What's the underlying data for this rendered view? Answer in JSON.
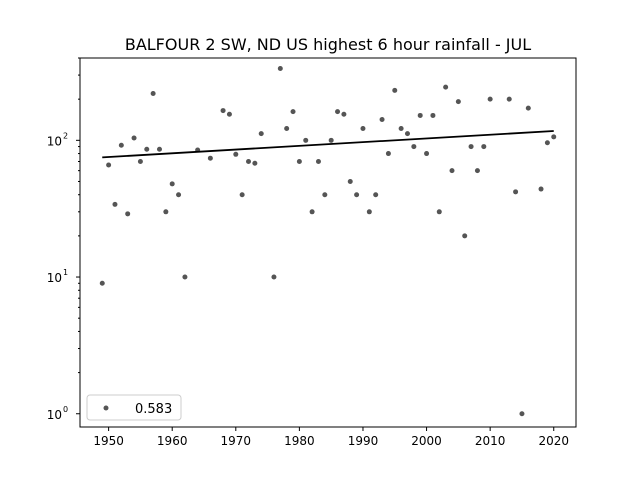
{
  "chart_data": {
    "type": "scatter",
    "title": "BALFOUR 2 SW, ND US highest 6 hour rainfall - JUL",
    "xlabel": "",
    "ylabel": "",
    "yscale": "log",
    "xlim": [
      1945.5,
      2023.5
    ],
    "ylim": [
      0.8,
      400
    ],
    "xticks": [
      1950,
      1960,
      1970,
      1980,
      1990,
      2000,
      2010,
      2020
    ],
    "xtick_labels": [
      "1950",
      "1960",
      "1970",
      "1980",
      "1990",
      "2000",
      "2010",
      "2020"
    ],
    "yticks": [
      1,
      10,
      100
    ],
    "ytick_labels": [
      "10",
      "10",
      "10"
    ],
    "ytick_exponents": [
      "0",
      "1",
      "2"
    ],
    "grid": false,
    "legend": {
      "placement": "lower-left",
      "entries": [
        "0.583"
      ]
    },
    "point_color": "#555555",
    "trend_color": "#000000",
    "x": [
      1949,
      1950,
      1951,
      1952,
      1953,
      1954,
      1955,
      1956,
      1957,
      1958,
      1959,
      1960,
      1961,
      1962,
      1964,
      1966,
      1968,
      1969,
      1970,
      1971,
      1972,
      1973,
      1974,
      1976,
      1977,
      1978,
      1979,
      1980,
      1981,
      1982,
      1983,
      1984,
      1985,
      1986,
      1987,
      1988,
      1989,
      1990,
      1991,
      1992,
      1993,
      1994,
      1995,
      1996,
      1997,
      1998,
      1999,
      2000,
      2001,
      2002,
      2003,
      2004,
      2005,
      2006,
      2007,
      2008,
      2009,
      2010,
      2013,
      2014,
      2015,
      2016,
      2018,
      2019,
      2020
    ],
    "y": [
      9,
      66,
      34,
      92,
      29,
      104,
      70,
      86,
      220,
      86,
      30,
      48,
      40,
      10,
      85,
      74,
      165,
      155,
      79,
      40,
      70,
      68,
      112,
      10,
      335,
      122,
      162,
      70,
      100,
      30,
      70,
      40,
      100,
      162,
      155,
      50,
      40,
      122,
      30,
      40,
      142,
      80,
      232,
      122,
      112,
      90,
      152,
      80,
      152,
      30,
      245,
      60,
      192,
      20,
      90,
      60,
      90,
      200,
      200,
      42,
      1,
      172,
      44,
      96,
      106
    ],
    "trend": {
      "x": [
        1949,
        2020
      ],
      "y": [
        75,
        117
      ]
    }
  }
}
